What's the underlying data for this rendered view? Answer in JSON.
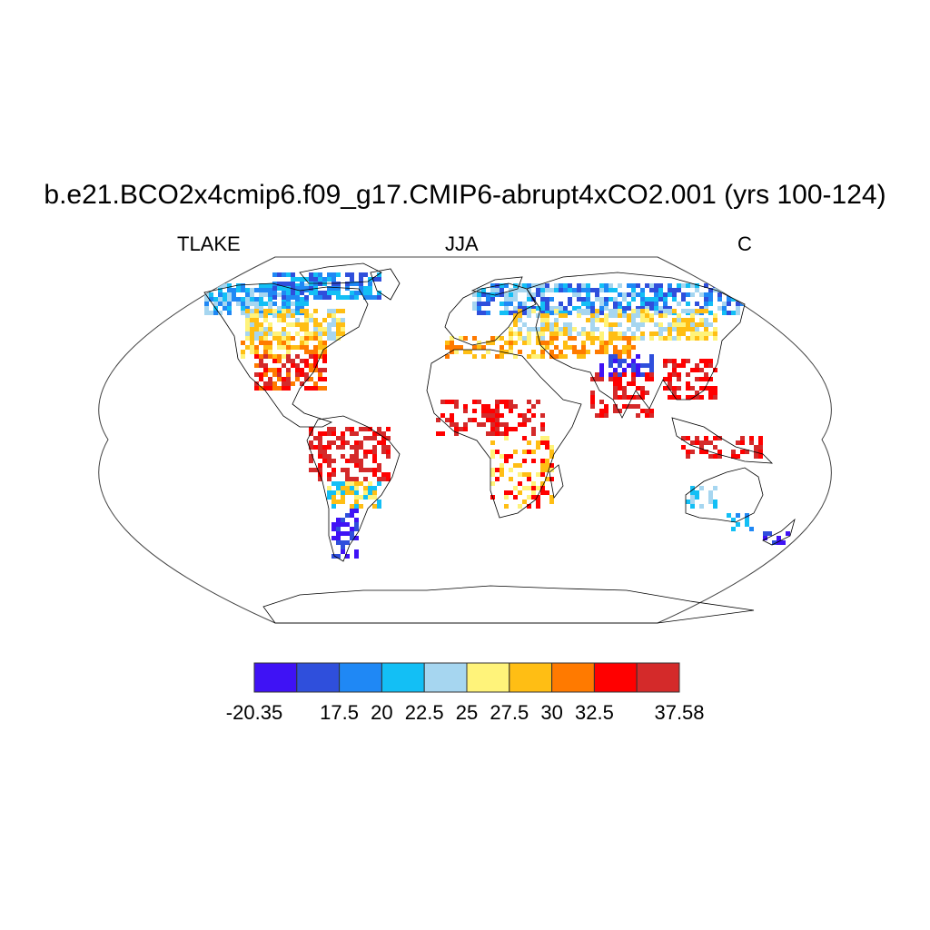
{
  "header": {
    "title": "b.e21.BCO2x4cmip6.f09_g17.CMIP6-abrupt4xCO2.001 (yrs 100-124)",
    "left_label": "TLAKE",
    "center_label": "JJA",
    "right_label": "C"
  },
  "map": {
    "projection": "robinson",
    "background": "#ffffff",
    "coastline_color": "#000000"
  },
  "colorbar": {
    "colors": [
      "#3f12f5",
      "#2f4fdc",
      "#1f88f5",
      "#13bff5",
      "#a6d6f0",
      "#fff37a",
      "#ffbe14",
      "#ff7a00",
      "#ff0000",
      "#d42a2a"
    ],
    "tick_labels": [
      "-20.35",
      "17.5",
      "20",
      "22.5",
      "25",
      "27.5",
      "30",
      "32.5",
      "37.58"
    ]
  }
}
